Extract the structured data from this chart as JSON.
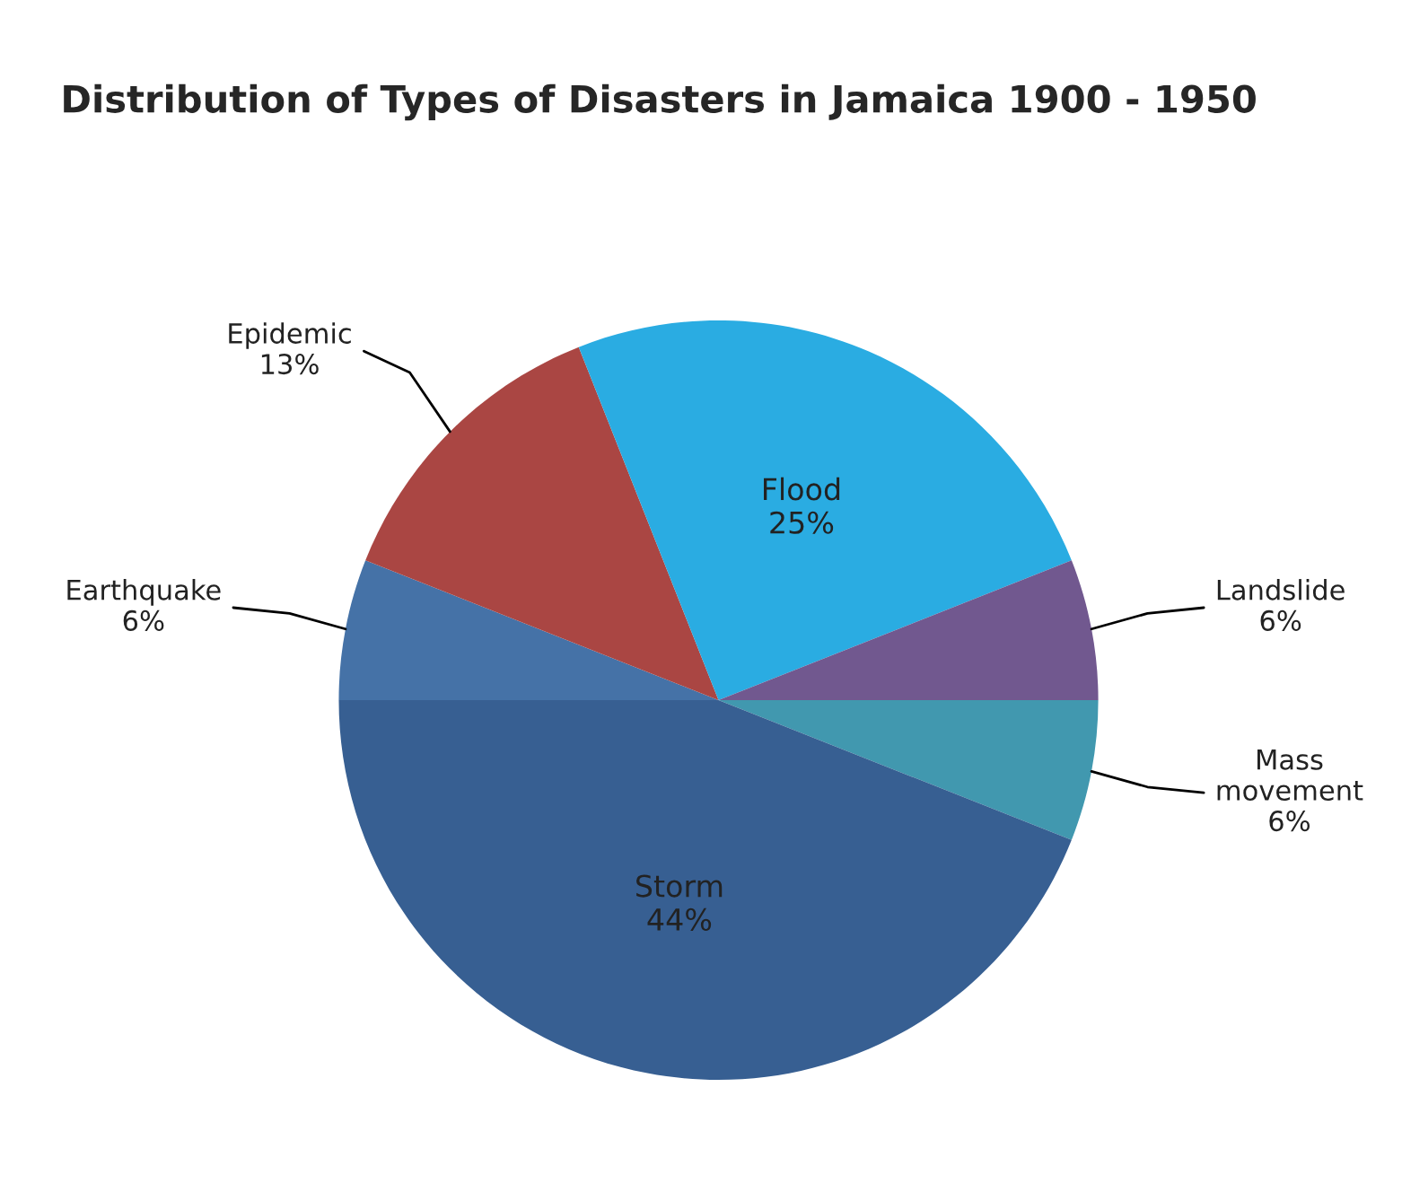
{
  "chart_data": {
    "type": "pie",
    "title": "Distribution of Types of Disasters in Jamaica 1900 - 1950",
    "categories": [
      "Mass movement",
      "Storm",
      "Earthquake",
      "Epidemic",
      "Flood",
      "Landslide"
    ],
    "values": [
      6,
      44,
      6,
      13,
      25,
      6
    ],
    "value_labels": [
      "6%",
      "44%",
      "6%",
      "13%",
      "25%",
      "6%"
    ],
    "colors": [
      "#4198af",
      "#375f92",
      "#4572a7",
      "#aa4643",
      "#2aace2",
      "#71588f"
    ],
    "legend": false
  }
}
